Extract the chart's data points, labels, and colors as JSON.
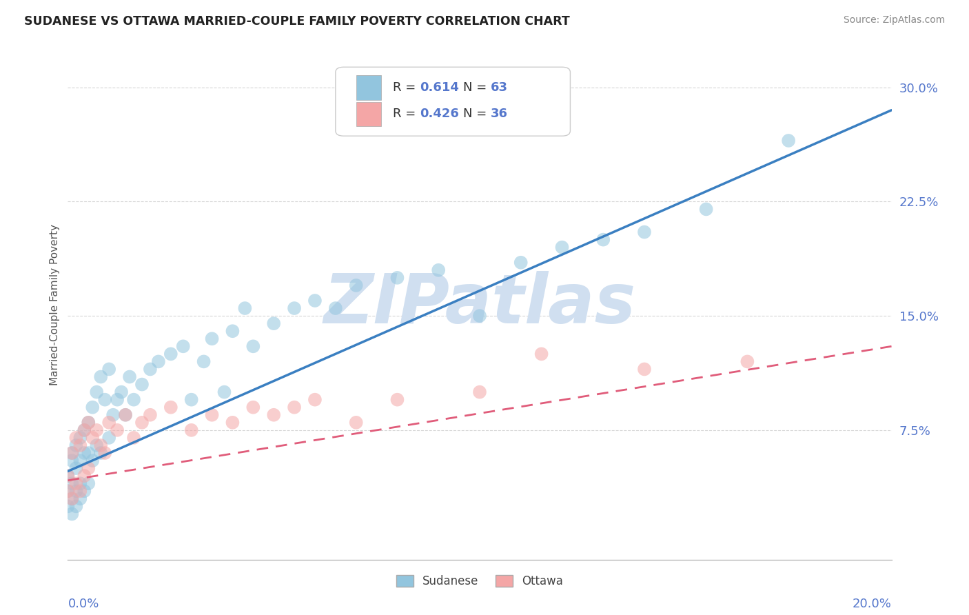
{
  "title": "SUDANESE VS OTTAWA MARRIED-COUPLE FAMILY POVERTY CORRELATION CHART",
  "source": "Source: ZipAtlas.com",
  "ylabel": "Married-Couple Family Poverty",
  "yticks": [
    0.075,
    0.15,
    0.225,
    0.3
  ],
  "ytick_labels": [
    "7.5%",
    "15.0%",
    "22.5%",
    "30.0%"
  ],
  "xlim": [
    0.0,
    0.2
  ],
  "ylim": [
    -0.01,
    0.325
  ],
  "sudanese_R": 0.614,
  "sudanese_N": 63,
  "ottawa_R": 0.426,
  "ottawa_N": 36,
  "sudanese_color": "#92c5de",
  "ottawa_color": "#f4a6a6",
  "sudanese_line_color": "#3a7fc1",
  "ottawa_line_color": "#e05c7a",
  "legend_sudanese": "Sudanese",
  "legend_ottawa": "Ottawa",
  "watermark": "ZIPatlas",
  "watermark_color": "#d0dff0",
  "background_color": "#ffffff",
  "title_color": "#222222",
  "axis_color": "#5577cc",
  "grid_color": "#cccccc",
  "sudanese_line_x0": 0.0,
  "sudanese_line_y0": 0.048,
  "sudanese_line_x1": 0.2,
  "sudanese_line_y1": 0.285,
  "ottawa_line_x0": 0.0,
  "ottawa_line_y0": 0.042,
  "ottawa_line_x1": 0.2,
  "ottawa_line_y1": 0.13,
  "sudanese_x": [
    0.0,
    0.0,
    0.0,
    0.001,
    0.001,
    0.001,
    0.001,
    0.001,
    0.002,
    0.002,
    0.002,
    0.002,
    0.003,
    0.003,
    0.003,
    0.003,
    0.004,
    0.004,
    0.004,
    0.005,
    0.005,
    0.005,
    0.006,
    0.006,
    0.007,
    0.007,
    0.008,
    0.008,
    0.009,
    0.01,
    0.01,
    0.011,
    0.012,
    0.013,
    0.014,
    0.015,
    0.016,
    0.018,
    0.02,
    0.022,
    0.025,
    0.028,
    0.03,
    0.033,
    0.035,
    0.038,
    0.04,
    0.043,
    0.045,
    0.05,
    0.055,
    0.06,
    0.065,
    0.07,
    0.08,
    0.09,
    0.1,
    0.11,
    0.12,
    0.13,
    0.14,
    0.155,
    0.175
  ],
  "sudanese_y": [
    0.045,
    0.035,
    0.025,
    0.055,
    0.06,
    0.04,
    0.03,
    0.02,
    0.05,
    0.065,
    0.035,
    0.025,
    0.07,
    0.055,
    0.04,
    0.03,
    0.075,
    0.06,
    0.035,
    0.08,
    0.06,
    0.04,
    0.09,
    0.055,
    0.1,
    0.065,
    0.11,
    0.06,
    0.095,
    0.115,
    0.07,
    0.085,
    0.095,
    0.1,
    0.085,
    0.11,
    0.095,
    0.105,
    0.115,
    0.12,
    0.125,
    0.13,
    0.095,
    0.12,
    0.135,
    0.1,
    0.14,
    0.155,
    0.13,
    0.145,
    0.155,
    0.16,
    0.155,
    0.17,
    0.175,
    0.18,
    0.15,
    0.185,
    0.195,
    0.2,
    0.205,
    0.22,
    0.265
  ],
  "ottawa_x": [
    0.0,
    0.0,
    0.001,
    0.001,
    0.002,
    0.002,
    0.003,
    0.003,
    0.004,
    0.004,
    0.005,
    0.005,
    0.006,
    0.007,
    0.008,
    0.009,
    0.01,
    0.012,
    0.014,
    0.016,
    0.018,
    0.02,
    0.025,
    0.03,
    0.035,
    0.04,
    0.045,
    0.05,
    0.055,
    0.06,
    0.07,
    0.08,
    0.1,
    0.115,
    0.14,
    0.165
  ],
  "ottawa_y": [
    0.045,
    0.035,
    0.06,
    0.03,
    0.07,
    0.04,
    0.065,
    0.035,
    0.075,
    0.045,
    0.08,
    0.05,
    0.07,
    0.075,
    0.065,
    0.06,
    0.08,
    0.075,
    0.085,
    0.07,
    0.08,
    0.085,
    0.09,
    0.075,
    0.085,
    0.08,
    0.09,
    0.085,
    0.09,
    0.095,
    0.08,
    0.095,
    0.1,
    0.125,
    0.115,
    0.12
  ]
}
